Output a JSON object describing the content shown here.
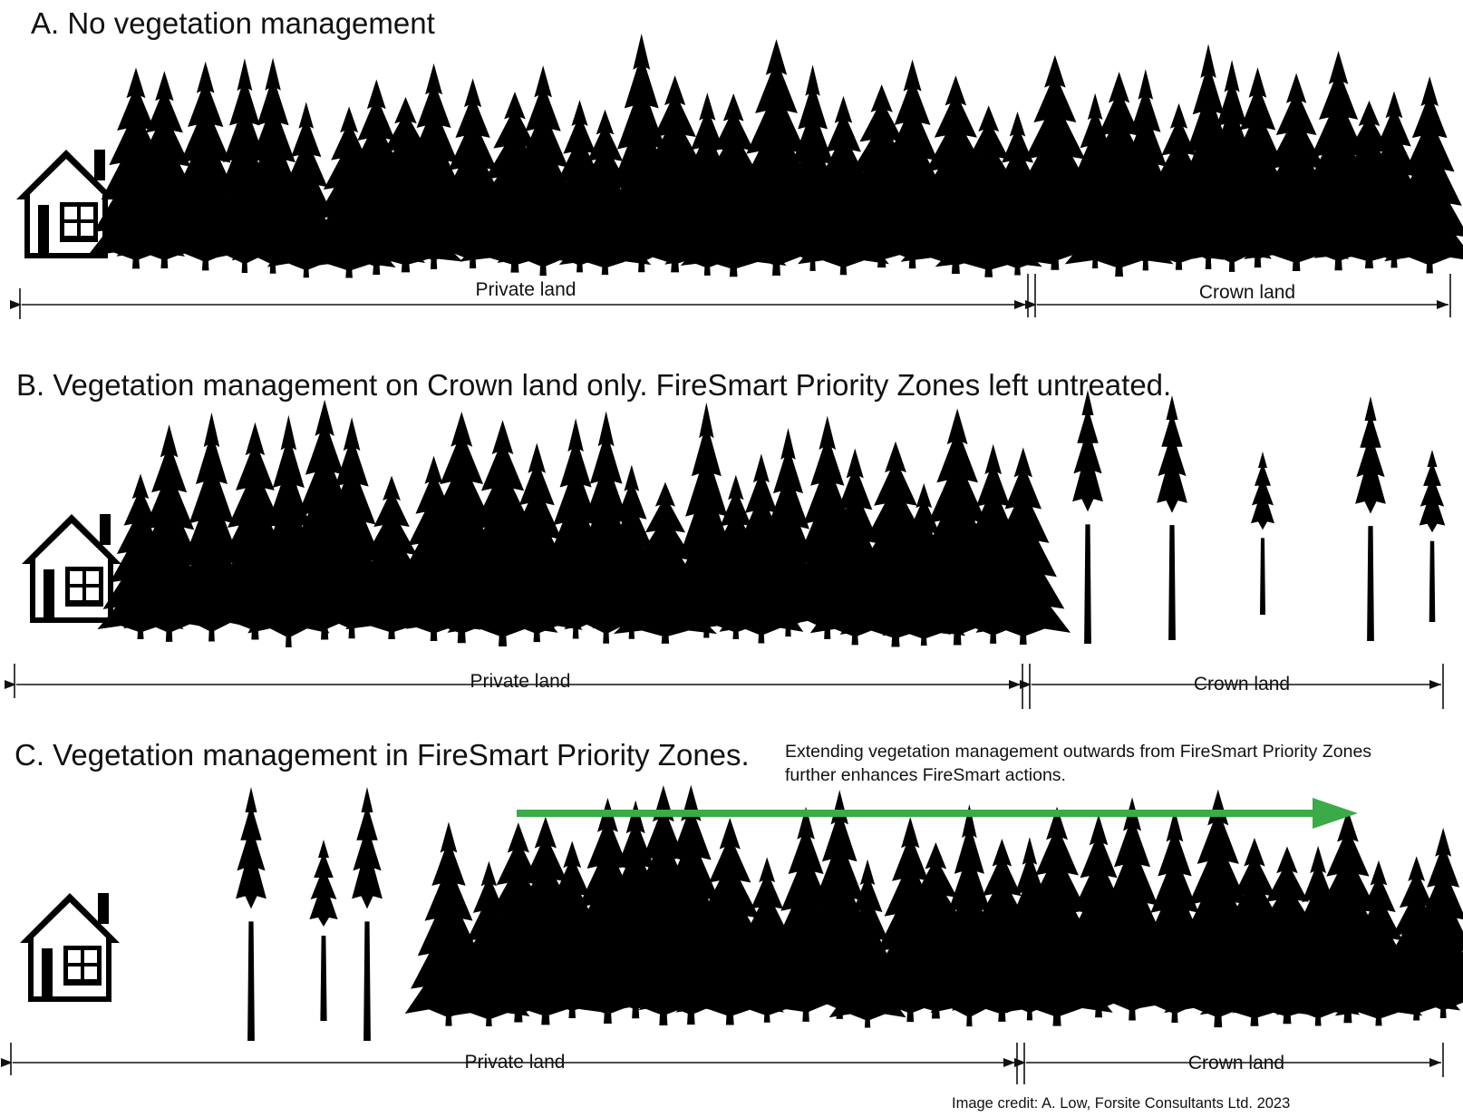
{
  "colors": {
    "silhouette": "#000000",
    "arrow_green": "#3aab46",
    "background": "#ffffff"
  },
  "panels": [
    {
      "id": "a",
      "title": "A. No vegetation management",
      "private_label": "Private land",
      "crown_label": "Crown land"
    },
    {
      "id": "b",
      "title": "B. Vegetation management on Crown land only. FireSmart Priority Zones left untreated.",
      "private_label": "Private land",
      "crown_label": "Crown land"
    },
    {
      "id": "c",
      "title": "C. Vegetation management in FireSmart Priority Zones.",
      "private_label": "Private land",
      "crown_label": "Crown land",
      "note": "Extending vegetation management outwards from FireSmart Priority Zones further enhances FireSmart actions."
    }
  ],
  "credit": "Image credit: A. Low, Forsite Consultants Ltd. 2023",
  "icons": {
    "house": "house-icon",
    "tree": "conifer-tree-icon",
    "arrow": "green-arrow-right"
  }
}
